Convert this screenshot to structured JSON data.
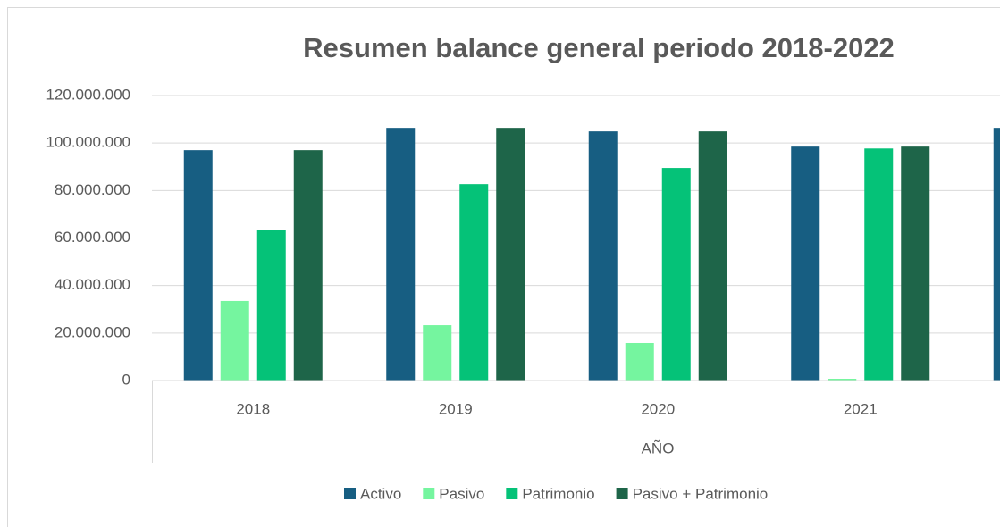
{
  "chart_data": {
    "type": "bar",
    "title": "Resumen balance general periodo 2018-2022",
    "x_label": "AÑO",
    "categories": [
      "2018",
      "2019",
      "2020",
      "2021",
      null
    ],
    "series": [
      {
        "name": "Activo",
        "color": "#175e82",
        "values": [
          97000000,
          106400000,
          104900000,
          98500000,
          106400000
        ]
      },
      {
        "name": "Pasivo",
        "color": "#75f59f",
        "values": [
          33500000,
          23300000,
          15800000,
          750000,
          null
        ]
      },
      {
        "name": "Patrimonio",
        "color": "#05c278",
        "values": [
          63500000,
          82700000,
          89500000,
          97700000,
          null
        ]
      },
      {
        "name": "Pasivo + Patrimonio",
        "color": "#1e6549",
        "values": [
          97000000,
          106400000,
          104900000,
          98500000,
          null
        ]
      }
    ],
    "ylim": [
      0,
      120000000
    ],
    "yticks": [
      0,
      {
        "value": 20000000,
        "label": "20.000.000"
      },
      {
        "value": 40000000,
        "label": "40.000.000"
      },
      {
        "value": 60000000,
        "label": "60.000.000"
      },
      {
        "value": 80000000,
        "label": "80.000.000"
      },
      {
        "value": 100000000,
        "label": "100.000.000"
      },
      {
        "value": 120000000,
        "label": "120.000.000"
      }
    ],
    "grid": true,
    "legend": "bottom"
  }
}
